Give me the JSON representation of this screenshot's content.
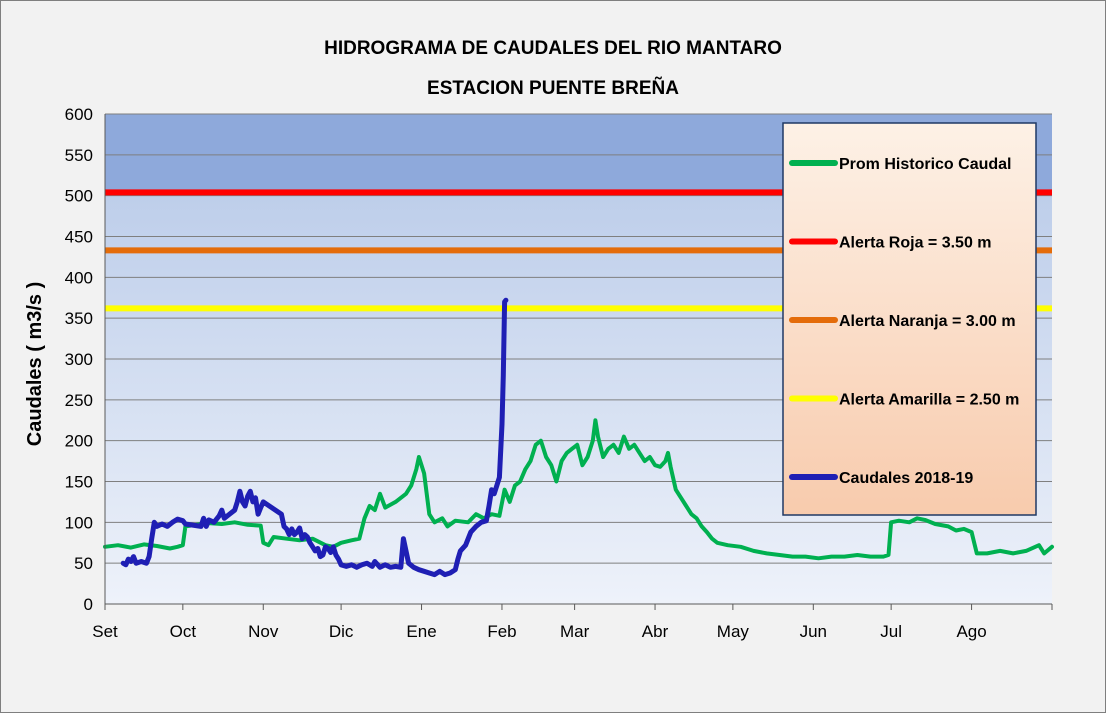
{
  "chart_data": {
    "type": "line",
    "title": "HIDROGRAMA DE CAUDALES DEL RIO MANTARO",
    "subtitle": "ESTACION PUENTE BREÑA",
    "ylabel": "Caudales ( m3/s )",
    "xlabel": "",
    "ylim": [
      0,
      600
    ],
    "yticks": [
      0,
      50,
      100,
      150,
      200,
      250,
      300,
      350,
      400,
      450,
      500,
      550,
      600
    ],
    "xlim": [
      0,
      365
    ],
    "xticks": [
      {
        "label": "Set",
        "day": 0
      },
      {
        "label": "Oct",
        "day": 30
      },
      {
        "label": "Nov",
        "day": 61
      },
      {
        "label": "Dic",
        "day": 91
      },
      {
        "label": "Ene",
        "day": 122
      },
      {
        "label": "Feb",
        "day": 153
      },
      {
        "label": "Mar",
        "day": 181
      },
      {
        "label": "Abr",
        "day": 212
      },
      {
        "label": "May",
        "day": 242
      },
      {
        "label": "Jun",
        "day": 273
      },
      {
        "label": "Jul",
        "day": 303
      },
      {
        "label": "Ago",
        "day": 334
      }
    ],
    "grid": true,
    "legend_position": "right",
    "background_bands": [
      {
        "from": 500,
        "to": 600,
        "color": "#8ea9db"
      },
      {
        "from": 0,
        "to": 500,
        "color": "#dae3f3"
      }
    ],
    "thresholds": [
      {
        "name": "Alerta Roja =  3.50 m",
        "value": 504,
        "color": "#ff0000"
      },
      {
        "name": "Alerta Naranja = 3.00 m",
        "value": 433,
        "color": "#e46c0a"
      },
      {
        "name": "Alerta Amarilla = 2.50 m",
        "value": 362,
        "color": "#ffff00"
      }
    ],
    "series": [
      {
        "name": "Prom Historico Caudal",
        "color": "#00b050",
        "points": [
          [
            0,
            70
          ],
          [
            5,
            72
          ],
          [
            10,
            69
          ],
          [
            15,
            73
          ],
          [
            20,
            71
          ],
          [
            25,
            68
          ],
          [
            28,
            70
          ],
          [
            30,
            72
          ],
          [
            31,
            95
          ],
          [
            35,
            97
          ],
          [
            40,
            99
          ],
          [
            45,
            98
          ],
          [
            50,
            100
          ],
          [
            55,
            97
          ],
          [
            60,
            96
          ],
          [
            61,
            75
          ],
          [
            63,
            72
          ],
          [
            65,
            82
          ],
          [
            70,
            80
          ],
          [
            75,
            78
          ],
          [
            80,
            80
          ],
          [
            85,
            72
          ],
          [
            88,
            70
          ],
          [
            91,
            75
          ],
          [
            95,
            78
          ],
          [
            98,
            80
          ],
          [
            100,
            105
          ],
          [
            102,
            120
          ],
          [
            104,
            115
          ],
          [
            106,
            135
          ],
          [
            108,
            118
          ],
          [
            112,
            125
          ],
          [
            116,
            135
          ],
          [
            118,
            145
          ],
          [
            120,
            165
          ],
          [
            121,
            180
          ],
          [
            123,
            160
          ],
          [
            125,
            110
          ],
          [
            127,
            100
          ],
          [
            130,
            105
          ],
          [
            132,
            95
          ],
          [
            135,
            102
          ],
          [
            140,
            100
          ],
          [
            143,
            110
          ],
          [
            146,
            105
          ],
          [
            149,
            110
          ],
          [
            152,
            108
          ],
          [
            154,
            140
          ],
          [
            156,
            125
          ],
          [
            158,
            145
          ],
          [
            160,
            150
          ],
          [
            162,
            165
          ],
          [
            164,
            175
          ],
          [
            166,
            195
          ],
          [
            168,
            200
          ],
          [
            170,
            180
          ],
          [
            172,
            170
          ],
          [
            174,
            150
          ],
          [
            176,
            175
          ],
          [
            178,
            185
          ],
          [
            180,
            190
          ],
          [
            182,
            195
          ],
          [
            184,
            170
          ],
          [
            186,
            180
          ],
          [
            188,
            200
          ],
          [
            189,
            225
          ],
          [
            190,
            205
          ],
          [
            192,
            180
          ],
          [
            194,
            190
          ],
          [
            196,
            195
          ],
          [
            198,
            185
          ],
          [
            200,
            205
          ],
          [
            202,
            190
          ],
          [
            204,
            195
          ],
          [
            206,
            185
          ],
          [
            208,
            175
          ],
          [
            210,
            180
          ],
          [
            212,
            170
          ],
          [
            214,
            168
          ],
          [
            216,
            175
          ],
          [
            217,
            185
          ],
          [
            218,
            168
          ],
          [
            220,
            140
          ],
          [
            222,
            130
          ],
          [
            224,
            120
          ],
          [
            226,
            110
          ],
          [
            228,
            105
          ],
          [
            230,
            95
          ],
          [
            232,
            88
          ],
          [
            234,
            80
          ],
          [
            236,
            75
          ],
          [
            240,
            72
          ],
          [
            245,
            70
          ],
          [
            250,
            65
          ],
          [
            255,
            62
          ],
          [
            260,
            60
          ],
          [
            265,
            58
          ],
          [
            270,
            58
          ],
          [
            275,
            56
          ],
          [
            280,
            58
          ],
          [
            285,
            58
          ],
          [
            290,
            60
          ],
          [
            295,
            58
          ],
          [
            300,
            58
          ],
          [
            302,
            60
          ],
          [
            303,
            100
          ],
          [
            306,
            102
          ],
          [
            310,
            100
          ],
          [
            313,
            105
          ],
          [
            316,
            103
          ],
          [
            320,
            98
          ],
          [
            325,
            95
          ],
          [
            328,
            90
          ],
          [
            331,
            92
          ],
          [
            334,
            88
          ],
          [
            335,
            75
          ],
          [
            336,
            62
          ],
          [
            340,
            62
          ],
          [
            345,
            65
          ],
          [
            350,
            62
          ],
          [
            355,
            65
          ],
          [
            360,
            72
          ],
          [
            362,
            62
          ],
          [
            365,
            70
          ]
        ]
      },
      {
        "name": "Caudales 2018-19",
        "color": "#1f1fb4",
        "points": [
          [
            7,
            50
          ],
          [
            8,
            48
          ],
          [
            9,
            55
          ],
          [
            10,
            52
          ],
          [
            11,
            58
          ],
          [
            12,
            50
          ],
          [
            14,
            52
          ],
          [
            16,
            50
          ],
          [
            17,
            58
          ],
          [
            18,
            80
          ],
          [
            19,
            100
          ],
          [
            20,
            95
          ],
          [
            22,
            98
          ],
          [
            24,
            95
          ],
          [
            26,
            100
          ],
          [
            28,
            104
          ],
          [
            30,
            102
          ],
          [
            31,
            98
          ],
          [
            37,
            95
          ],
          [
            38,
            105
          ],
          [
            39,
            95
          ],
          [
            40,
            103
          ],
          [
            42,
            100
          ],
          [
            44,
            108
          ],
          [
            45,
            115
          ],
          [
            46,
            105
          ],
          [
            48,
            110
          ],
          [
            50,
            115
          ],
          [
            51,
            125
          ],
          [
            52,
            138
          ],
          [
            53,
            125
          ],
          [
            54,
            120
          ],
          [
            55,
            132
          ],
          [
            56,
            138
          ],
          [
            57,
            125
          ],
          [
            58,
            130
          ],
          [
            59,
            110
          ],
          [
            60,
            118
          ],
          [
            61,
            125
          ],
          [
            68,
            110
          ],
          [
            69,
            95
          ],
          [
            70,
            92
          ],
          [
            71,
            85
          ],
          [
            72,
            92
          ],
          [
            73,
            85
          ],
          [
            74,
            88
          ],
          [
            75,
            93
          ],
          [
            76,
            80
          ],
          [
            77,
            85
          ],
          [
            78,
            82
          ],
          [
            79,
            75
          ],
          [
            80,
            70
          ],
          [
            81,
            65
          ],
          [
            82,
            68
          ],
          [
            83,
            58
          ],
          [
            84,
            60
          ],
          [
            85,
            70
          ],
          [
            86,
            68
          ],
          [
            87,
            63
          ],
          [
            88,
            70
          ],
          [
            89,
            60
          ],
          [
            90,
            55
          ],
          [
            91,
            48
          ],
          [
            93,
            46
          ],
          [
            95,
            48
          ],
          [
            97,
            45
          ],
          [
            99,
            48
          ],
          [
            101,
            50
          ],
          [
            103,
            46
          ],
          [
            104,
            52
          ],
          [
            106,
            45
          ],
          [
            108,
            48
          ],
          [
            110,
            45
          ],
          [
            112,
            46
          ],
          [
            114,
            45
          ],
          [
            115,
            80
          ],
          [
            116,
            65
          ],
          [
            117,
            50
          ],
          [
            119,
            45
          ],
          [
            121,
            42
          ],
          [
            123,
            40
          ],
          [
            125,
            38
          ],
          [
            127,
            36
          ],
          [
            129,
            40
          ],
          [
            131,
            36
          ],
          [
            133,
            38
          ],
          [
            135,
            42
          ],
          [
            136,
            55
          ],
          [
            137,
            65
          ],
          [
            139,
            72
          ],
          [
            141,
            88
          ],
          [
            143,
            95
          ],
          [
            145,
            100
          ],
          [
            147,
            102
          ],
          [
            148,
            120
          ],
          [
            149,
            140
          ],
          [
            150,
            135
          ],
          [
            151,
            145
          ],
          [
            152,
            155
          ],
          [
            153,
            220
          ],
          [
            153.5,
            280
          ],
          [
            154,
            370
          ],
          [
            154.5,
            372
          ]
        ]
      }
    ]
  }
}
